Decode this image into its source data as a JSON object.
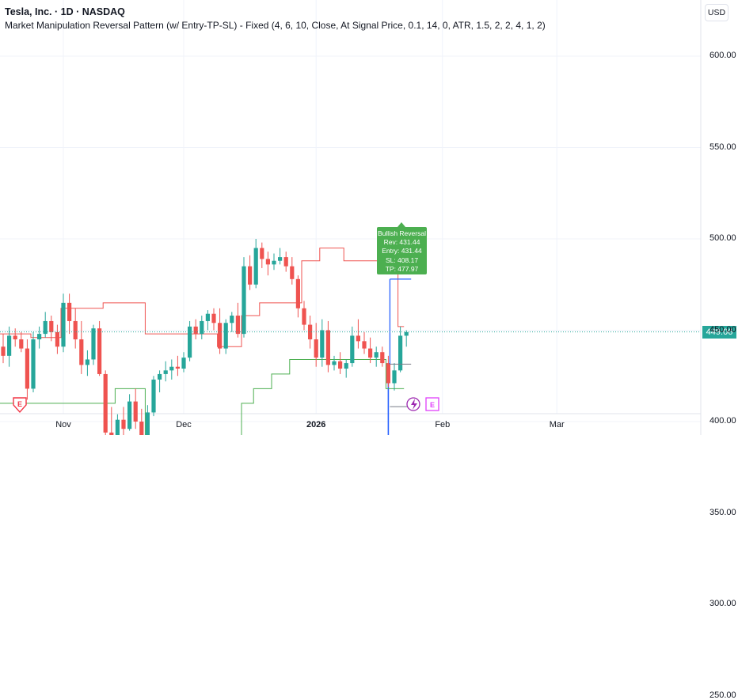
{
  "header": {
    "title": "Tesla, Inc. · 1D · NASDAQ",
    "subtitle": "Market Manipulation Reversal Pattern (w/ Entry-TP-SL) - Fixed (4, 6, 10, Close, At Signal Price, 0.1, 14, 0, ATR, 1.5, 2, 2, 4, 1, 2)"
  },
  "currency": "USD",
  "price_badge": {
    "value": "449.06",
    "color": "#26a69a"
  },
  "signal_label": {
    "lines": [
      "Bullish Reversal",
      "Rev: 431.44",
      "Entry: 431.44",
      "SL: 408.17",
      "TP: 477.97"
    ],
    "color": "#4caf50"
  },
  "colors": {
    "up": "#26a69a",
    "down": "#ef5350",
    "upper_band": "#ef5350",
    "lower_band": "#4caf50",
    "levels": "#2962ff",
    "grid": "#f0f3fa"
  },
  "chart_data": {
    "type": "candlestick",
    "yaxis": {
      "ticks": [
        "600.00",
        "550.00",
        "500.00",
        "450.00",
        "400.00",
        "350.00",
        "300.00",
        "250.00"
      ],
      "range": [
        215,
        643
      ]
    },
    "xaxis": {
      "ticks": [
        {
          "label": "Nov",
          "index": 10,
          "bold": false
        },
        {
          "label": "Dec",
          "index": 30,
          "bold": false
        },
        {
          "label": "2026",
          "index": 52,
          "bold": true
        },
        {
          "label": "Feb",
          "index": 73,
          "bold": false
        },
        {
          "label": "Mar",
          "index": 92,
          "bold": false
        }
      ]
    },
    "candles": [
      [
        441,
        448,
        432,
        436
      ],
      [
        436,
        452,
        430,
        447
      ],
      [
        447,
        451,
        441,
        445
      ],
      [
        445,
        449,
        438,
        440
      ],
      [
        440,
        445,
        412,
        418
      ],
      [
        418,
        449,
        416,
        445
      ],
      [
        445,
        452,
        440,
        448
      ],
      [
        448,
        460,
        446,
        455
      ],
      [
        455,
        458,
        444,
        449
      ],
      [
        449,
        453,
        437,
        441
      ],
      [
        441,
        470,
        438,
        465
      ],
      [
        465,
        470,
        448,
        455
      ],
      [
        455,
        462,
        440,
        445
      ],
      [
        445,
        455,
        426,
        431
      ],
      [
        431,
        439,
        425,
        434
      ],
      [
        434,
        453,
        431,
        451
      ],
      [
        451,
        455,
        425,
        426
      ],
      [
        426,
        428,
        387,
        394
      ],
      [
        394,
        408,
        380,
        383
      ],
      [
        383,
        404,
        382,
        401
      ],
      [
        401,
        408,
        392,
        396
      ],
      [
        396,
        415,
        395,
        411
      ],
      [
        411,
        418,
        396,
        400
      ],
      [
        400,
        407,
        384,
        388
      ],
      [
        388,
        409,
        385,
        405
      ],
      [
        405,
        425,
        403,
        423
      ],
      [
        423,
        428,
        416,
        426
      ],
      [
        426,
        433,
        422,
        428
      ],
      [
        428,
        434,
        423,
        430
      ],
      [
        430,
        436,
        425,
        429
      ],
      [
        429,
        438,
        427,
        435
      ],
      [
        435,
        455,
        433,
        452
      ],
      [
        452,
        456,
        445,
        448
      ],
      [
        448,
        458,
        445,
        455
      ],
      [
        455,
        461,
        450,
        459
      ],
      [
        459,
        462,
        450,
        454
      ],
      [
        454,
        462,
        437,
        440
      ],
      [
        440,
        456,
        437,
        454
      ],
      [
        454,
        460,
        449,
        458
      ],
      [
        458,
        465,
        446,
        448
      ],
      [
        448,
        490,
        446,
        485
      ],
      [
        485,
        491,
        472,
        475
      ],
      [
        475,
        500,
        473,
        495
      ],
      [
        495,
        498,
        484,
        489
      ],
      [
        489,
        493,
        480,
        486
      ],
      [
        486,
        492,
        483,
        488
      ],
      [
        488,
        495,
        486,
        490
      ],
      [
        490,
        493,
        482,
        485
      ],
      [
        485,
        490,
        475,
        478
      ],
      [
        478,
        480,
        457,
        462
      ],
      [
        462,
        466,
        450,
        453
      ],
      [
        453,
        458,
        440,
        445
      ],
      [
        445,
        454,
        430,
        435
      ],
      [
        435,
        456,
        430,
        450
      ],
      [
        450,
        455,
        427,
        431
      ],
      [
        431,
        436,
        428,
        433
      ],
      [
        433,
        438,
        426,
        429
      ],
      [
        429,
        434,
        424,
        432
      ],
      [
        432,
        452,
        430,
        447
      ],
      [
        447,
        456,
        440,
        444
      ],
      [
        444,
        449,
        437,
        440
      ],
      [
        440,
        446,
        432,
        435
      ],
      [
        435,
        441,
        430,
        438
      ],
      [
        438,
        441,
        430,
        432
      ],
      [
        432,
        436,
        419,
        421
      ],
      [
        421,
        432,
        417,
        428
      ],
      [
        428,
        452,
        427,
        447
      ],
      [
        447,
        450,
        441,
        449
      ]
    ],
    "upper_band": [
      [
        -1,
        448
      ],
      [
        5,
        448
      ],
      [
        5,
        446
      ],
      [
        10,
        446
      ],
      [
        10,
        462
      ],
      [
        17,
        462
      ],
      [
        17,
        465
      ],
      [
        24,
        465
      ],
      [
        24,
        448
      ],
      [
        36,
        448
      ],
      [
        36,
        441
      ],
      [
        40,
        441
      ],
      [
        40,
        458
      ],
      [
        43,
        458
      ],
      [
        43,
        465
      ],
      [
        50,
        465
      ],
      [
        50,
        488
      ],
      [
        53,
        488
      ],
      [
        53,
        495
      ],
      [
        57,
        495
      ],
      [
        57,
        488
      ],
      [
        66,
        488
      ],
      [
        66,
        452
      ],
      [
        67,
        452
      ]
    ],
    "lower_band": [
      [
        -1,
        410
      ],
      [
        19,
        410
      ],
      [
        19,
        418
      ],
      [
        24,
        418
      ],
      [
        24,
        380
      ],
      [
        40,
        380
      ],
      [
        40,
        410
      ],
      [
        42,
        410
      ],
      [
        42,
        418
      ],
      [
        45,
        418
      ],
      [
        45,
        426
      ],
      [
        48,
        426
      ],
      [
        48,
        434
      ],
      [
        64,
        434
      ],
      [
        64,
        418
      ],
      [
        67,
        418
      ]
    ],
    "levels": [
      {
        "y": 287,
        "x_start": 0,
        "x_end": 67
      },
      {
        "y": 299,
        "x_start": 0,
        "x_end": 63
      },
      {
        "y": 346,
        "x_start": 0,
        "x_end": 63
      },
      {
        "y": 327,
        "x_start": 0,
        "x_end": 67
      },
      {
        "y": 349,
        "x_start": 0,
        "x_end": 67
      },
      {
        "y": 280,
        "x_start": 0,
        "x_end": 63
      }
    ],
    "entry_tp_sl": {
      "entry": 431.44,
      "sl": 408.17,
      "tp": 477.97
    },
    "current_price": 449.06
  }
}
